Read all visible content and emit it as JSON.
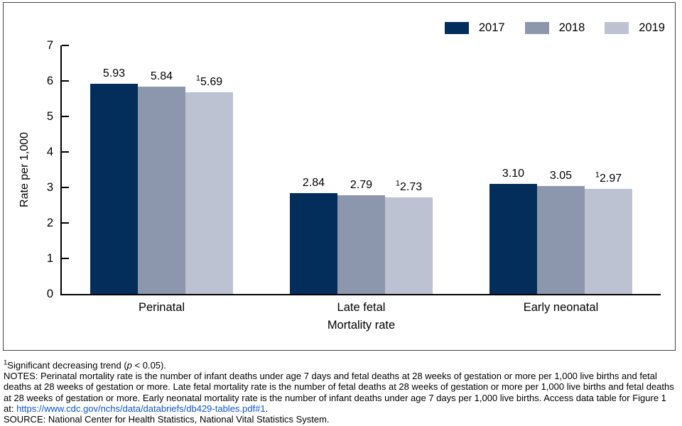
{
  "chart_data": {
    "type": "bar",
    "title": "",
    "categories": [
      "Perinatal",
      "Late fetal",
      "Early neonatal"
    ],
    "series": [
      {
        "name": "2017",
        "color": "#032E5C",
        "values": [
          5.93,
          2.84,
          3.1
        ],
        "significant": [
          false,
          false,
          false
        ]
      },
      {
        "name": "2018",
        "color": "#8C96AD",
        "values": [
          5.84,
          2.79,
          3.05
        ],
        "significant": [
          false,
          false,
          false
        ]
      },
      {
        "name": "2019",
        "color": "#BCC2D1",
        "values": [
          5.69,
          2.73,
          2.97
        ],
        "significant": [
          true,
          true,
          true
        ]
      }
    ],
    "sig_marker": "1",
    "xlabel": "Mortality rate",
    "ylabel": "Rate per 1,000",
    "ylim": [
      0,
      7
    ],
    "yticks": [
      0,
      1,
      2,
      3,
      4,
      5,
      6,
      7
    ],
    "legend_position": "top-right",
    "grid": false
  },
  "notes": {
    "footnote": {
      "marker": "1",
      "pre": "Significant decreasing trend (",
      "var": "p",
      "post": " < 0.05)."
    },
    "body": {
      "text": "NOTES: Perinatal mortality rate is the number of infant deaths under age 7 days and fetal deaths at 28 weeks of gestation or more per 1,000 live births and fetal deaths at 28 weeks of gestation or more. Late fetal mortality rate is the number of fetal deaths at 28 weeks of gestation or more per 1,000 live births and fetal deaths at 28 weeks of gestation or more. Early neonatal mortality rate is the number of infant deaths under age 7 days per 1,000 live births. Access data table for Figure 1 at: ",
      "link": "https://www.cdc.gov/nchs/data/databriefs/db429-tables.pdf#1",
      "after_link": "."
    },
    "source": "SOURCE: National Center for Health Statistics, National Vital Statistics System."
  },
  "colors": {
    "axis": "#000000",
    "figure_border": "#444444",
    "link": "#1155CC"
  }
}
